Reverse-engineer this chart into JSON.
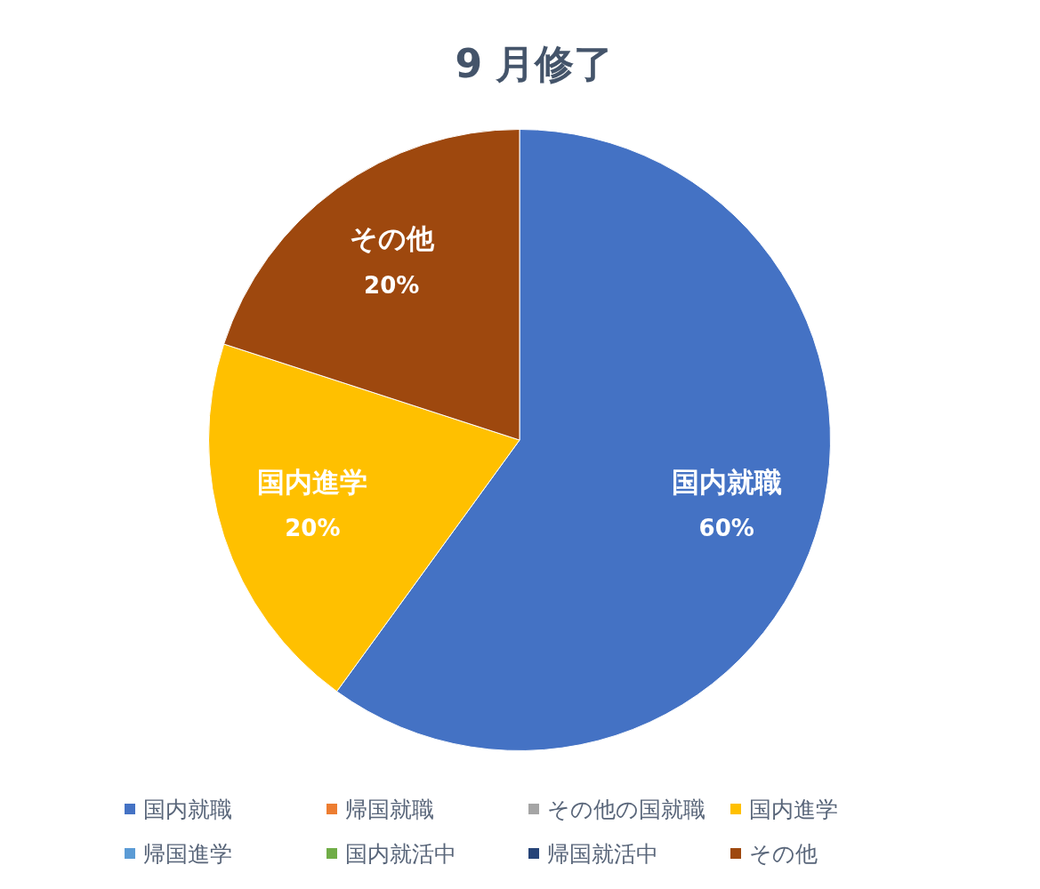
{
  "chart_data": {
    "type": "pie",
    "title": "9 月修了",
    "categories": [
      "国内就職",
      "帰国就職",
      "その他の国就職",
      "国内進学",
      "帰国進学",
      "国内就活中",
      "帰国就活中",
      "その他"
    ],
    "values": [
      60,
      0,
      0,
      20,
      0,
      0,
      0,
      20
    ],
    "colors": [
      "#4472c4",
      "#ed7d31",
      "#a5a5a5",
      "#ffc000",
      "#5b9bd5",
      "#70ad47",
      "#264478",
      "#9e480e"
    ],
    "value_labels": [
      "60%",
      null,
      null,
      "20%",
      null,
      null,
      null,
      "20%"
    ],
    "legend": "bottom"
  }
}
